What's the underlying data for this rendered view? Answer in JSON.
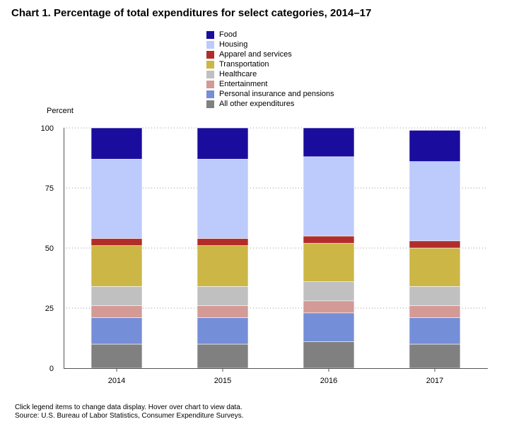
{
  "chart_data": {
    "type": "bar",
    "stacked": true,
    "title": "Chart 1. Percentage of total expenditures for select categories, 2014–17",
    "ylabel": "Percent",
    "xlabel": "",
    "ylim": [
      0,
      100
    ],
    "yticks": [
      0,
      25,
      50,
      75,
      100
    ],
    "grid": true,
    "categories": [
      "2014",
      "2015",
      "2016",
      "2017"
    ],
    "series": [
      {
        "name": "All other expenditures",
        "color": "#808080",
        "values": [
          10,
          10,
          11,
          10
        ]
      },
      {
        "name": "Personal insurance and pensions",
        "color": "#758ed8",
        "values": [
          11,
          11,
          12,
          11
        ]
      },
      {
        "name": "Entertainment",
        "color": "#d39a96",
        "values": [
          5,
          5,
          5,
          5
        ]
      },
      {
        "name": "Healthcare",
        "color": "#c0c0c0",
        "values": [
          8,
          8,
          8,
          8
        ]
      },
      {
        "name": "Transportation",
        "color": "#ccb646",
        "values": [
          17,
          17,
          16,
          16
        ]
      },
      {
        "name": "Apparel and services",
        "color": "#b22d2a",
        "values": [
          3,
          3,
          3,
          3
        ]
      },
      {
        "name": "Housing",
        "color": "#bccbfb",
        "values": [
          33,
          33,
          33,
          33
        ]
      },
      {
        "name": "Food",
        "color": "#1a0d9e",
        "values": [
          13,
          13,
          12,
          13
        ]
      }
    ],
    "legend_order": [
      "Food",
      "Housing",
      "Apparel and services",
      "Transportation",
      "Healthcare",
      "Entertainment",
      "Personal insurance and pensions",
      "All other expenditures"
    ]
  },
  "notes": {
    "interaction": "Click legend items to change data display. Hover over chart to view data.",
    "source": "Source: U.S. Bureau of Labor Statistics, Consumer Expenditure Surveys."
  }
}
